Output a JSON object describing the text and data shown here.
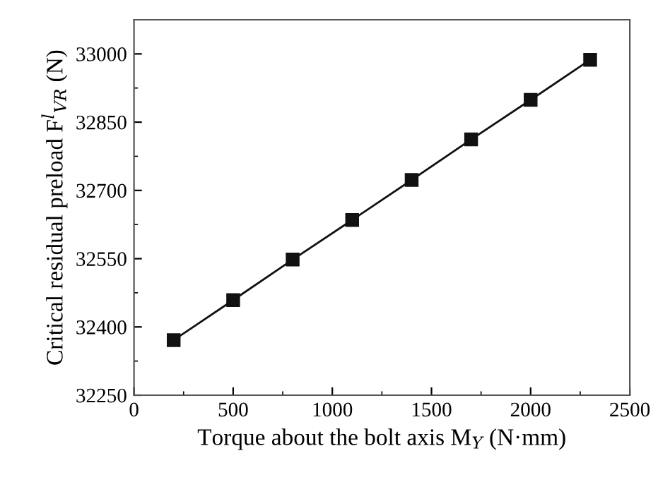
{
  "chart_data": {
    "type": "line",
    "xlabel": "Torque about the bolt axis M$_{Y}$ (N·mm)",
    "ylabel": "Critical residual preload F$^{l}$$_{VR}$ (N)",
    "x": [
      200,
      500,
      800,
      1100,
      1400,
      1700,
      2000,
      2300
    ],
    "series": [
      {
        "color": "#111111",
        "values": [
          32371,
          32459,
          32548,
          32635,
          32723,
          32812,
          32899,
          32987
        ]
      }
    ],
    "marker": "square",
    "line_style": "solid",
    "grid": false,
    "xlim": [
      0,
      2500
    ],
    "ylim": [
      32250,
      33075
    ],
    "xticks": [
      0,
      {
        "value": 250,
        "label": null
      },
      500,
      {
        "value": 750,
        "label": null
      },
      1000,
      {
        "value": 1250,
        "label": null
      },
      1500,
      {
        "value": 1750,
        "label": null
      },
      2000,
      {
        "value": 2250,
        "label": null
      },
      2500
    ],
    "yticks": [
      32250,
      {
        "value": 32325,
        "label": null
      },
      32400,
      {
        "value": 32475,
        "label": null
      },
      32550,
      {
        "value": 32625,
        "label": null
      },
      32700,
      {
        "value": 32775,
        "label": null
      },
      32850,
      {
        "value": 32925,
        "label": null
      },
      33000
    ]
  }
}
